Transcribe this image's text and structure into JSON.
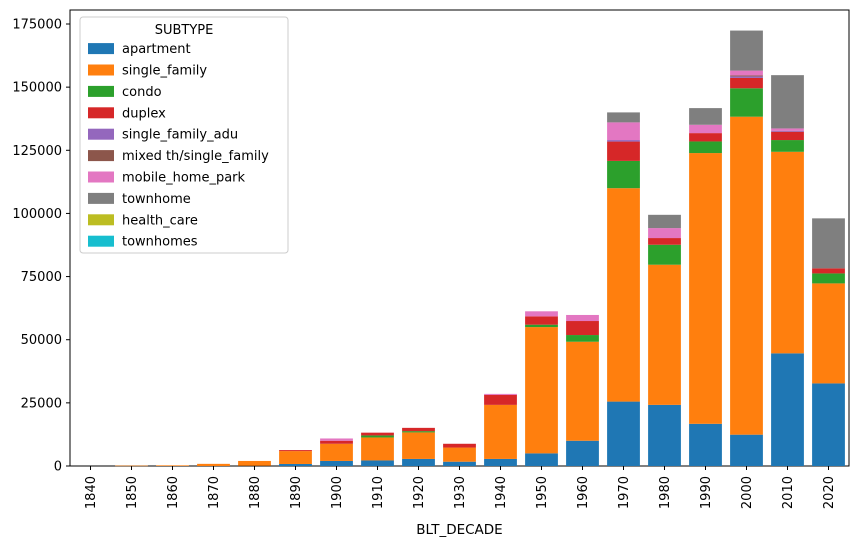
{
  "chart_data": {
    "type": "bar",
    "stacked": true,
    "title": "",
    "xlabel": "BLT_DECADE",
    "ylabel": "",
    "ylim": [
      0,
      175000
    ],
    "yticks": [
      0,
      25000,
      50000,
      75000,
      100000,
      125000,
      150000,
      175000
    ],
    "grid": false,
    "legend": {
      "title": "SUBTYPE",
      "position": "upper left"
    },
    "categories": [
      "1840",
      "1850",
      "1860",
      "1870",
      "1880",
      "1890",
      "1900",
      "1910",
      "1920",
      "1930",
      "1940",
      "1950",
      "1960",
      "1970",
      "1980",
      "1990",
      "2000",
      "2010",
      "2020"
    ],
    "series": [
      {
        "name": "apartment",
        "color": "#1f77b4",
        "values": [
          0,
          0,
          0,
          0,
          100,
          800,
          2000,
          2200,
          2800,
          1700,
          2800,
          5000,
          10000,
          25500,
          24200,
          16700,
          12400,
          44600,
          32700
        ]
      },
      {
        "name": "single_family",
        "color": "#ff7f0e",
        "values": [
          100,
          150,
          250,
          850,
          1900,
          5100,
          6800,
          9100,
          10500,
          5600,
          21400,
          50000,
          39200,
          84500,
          55500,
          107200,
          125900,
          79800,
          39600
        ]
      },
      {
        "name": "condo",
        "color": "#2ca02c",
        "values": [
          0,
          0,
          0,
          0,
          0,
          0,
          0,
          800,
          500,
          0,
          0,
          950,
          2650,
          10800,
          7900,
          4600,
          11250,
          4650,
          3950
        ]
      },
      {
        "name": "duplex",
        "color": "#d62728",
        "values": [
          0,
          0,
          0,
          100,
          0,
          400,
          1200,
          1100,
          1300,
          1500,
          3950,
          3300,
          5550,
          7650,
          2650,
          3300,
          4100,
          3300,
          2000
        ]
      },
      {
        "name": "single_family_adu",
        "color": "#9467bd",
        "values": [
          0,
          0,
          0,
          0,
          0,
          0,
          0,
          0,
          0,
          0,
          0,
          0,
          0,
          600,
          0,
          0,
          600,
          400,
          0
        ]
      },
      {
        "name": "mixed th/single_family",
        "color": "#8c564b",
        "values": [
          0,
          0,
          0,
          0,
          0,
          0,
          0,
          0,
          0,
          0,
          0,
          0,
          0,
          0,
          0,
          0,
          400,
          0,
          0
        ]
      },
      {
        "name": "mobile_home_park",
        "color": "#e377c2",
        "values": [
          0,
          0,
          0,
          0,
          0,
          0,
          900,
          0,
          0,
          0,
          400,
          2000,
          2400,
          7000,
          3950,
          3300,
          1900,
          900,
          0
        ]
      },
      {
        "name": "townhome",
        "color": "#7f7f7f",
        "values": [
          0,
          0,
          0,
          0,
          0,
          0,
          0,
          0,
          0,
          0,
          0,
          0,
          0,
          3950,
          5250,
          6600,
          15850,
          21100,
          19800
        ]
      },
      {
        "name": "health_care",
        "color": "#bcbd22",
        "values": [
          0,
          0,
          0,
          0,
          0,
          0,
          0,
          0,
          0,
          0,
          0,
          0,
          0,
          0,
          0,
          0,
          100,
          0,
          0
        ]
      },
      {
        "name": "townhomes",
        "color": "#17becf",
        "values": [
          0,
          0,
          0,
          0,
          0,
          0,
          0,
          0,
          0,
          0,
          0,
          0,
          0,
          0,
          0,
          0,
          0,
          0,
          100
        ]
      }
    ]
  }
}
